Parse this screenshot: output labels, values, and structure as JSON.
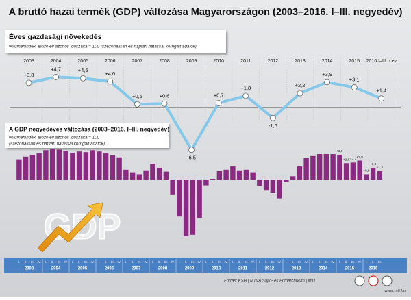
{
  "title": "A bruttó hazai termék (GDP) változása Magyarországon (2003–2016. I–III. negyedév)",
  "source": "Forrás: KSH | MTVA Sajtó- és Fotóarchívum | MTI",
  "website": "www.mti.hu",
  "logo_text": "GDP",
  "chart_data": [
    {
      "type": "line",
      "title": "Éves gazdasági növekedés",
      "subtitle": [
        "volumenindex, előző év azonos időszaka = 100 (szezonálisan és naptári hatással korrigált adatok)"
      ],
      "categories": [
        "2003",
        "2004",
        "2005",
        "2006",
        "2007",
        "2008",
        "2009",
        "2010",
        "2011",
        "2012",
        "2013",
        "2014",
        "2015",
        "2016.I–III.n.év"
      ],
      "values": [
        3.8,
        4.7,
        4.5,
        4.0,
        0.5,
        0.6,
        -6.5,
        0.7,
        1.8,
        -1.6,
        2.2,
        3.9,
        3.1,
        1.4
      ],
      "value_labels": [
        "+3,8",
        "+4,7",
        "+4,5",
        "+4,0",
        "+0,5",
        "+0,6",
        "-6,5",
        "+0,7",
        "+1,8",
        "-1,6",
        "+2,2",
        "+3,9",
        "+3,1",
        "+1,4"
      ],
      "color": "#86c8ea",
      "ylim": [
        -7,
        5
      ]
    },
    {
      "type": "bar",
      "title": "A GDP negyedéves változása (2003–2016. I–III. negyedév)",
      "subtitle": [
        "volumenindex, előző év azonos időszaka = 100",
        "(szezonálisan és naptári hatással korrigált adatok)"
      ],
      "categories": [
        "I.",
        "II.",
        "III.",
        "IV.",
        "I.",
        "II.",
        "III.",
        "IV.",
        "I.",
        "II.",
        "III.",
        "IV.",
        "I.",
        "II.",
        "III.",
        "IV.",
        "I.",
        "II.",
        "III.",
        "IV.",
        "I.",
        "II.",
        "III.",
        "IV.",
        "I.",
        "II.",
        "III.",
        "IV.",
        "I.",
        "II.",
        "III.",
        "IV.",
        "I.",
        "II.",
        "III.",
        "IV.",
        "I.",
        "II.",
        "III.",
        "IV.",
        "I.",
        "II.",
        "III.",
        "IV.",
        "I.",
        "II.",
        "III.",
        "IV.",
        "I.",
        "II.",
        "III.",
        "IV.",
        "I.",
        "II.",
        "III."
      ],
      "years": [
        "2003",
        "2004",
        "2005",
        "2006",
        "2007",
        "2008",
        "2009",
        "2010",
        "2011",
        "2012",
        "2013",
        "2014",
        "2015",
        "2016"
      ],
      "values": [
        3.2,
        3.6,
        3.9,
        4.1,
        4.6,
        4.8,
        4.7,
        4.5,
        4.2,
        4.4,
        4.3,
        4.6,
        4.4,
        4.1,
        3.8,
        3.5,
        1.6,
        1.2,
        0.9,
        1.5,
        2.5,
        1.9,
        1.3,
        -2.2,
        -5.6,
        -8.6,
        -8.4,
        -5.8,
        -0.8,
        0.2,
        1.4,
        1.6,
        2.1,
        1.5,
        1.6,
        1.2,
        -0.9,
        -1.6,
        -2.0,
        -2.8,
        -0.3,
        0.6,
        2.1,
        3.4,
        3.7,
        4.0,
        4.0,
        4.0,
        3.9,
        2.6,
        2.7,
        3.0,
        0.9,
        1.9,
        1.4
      ],
      "value_labels": [
        null,
        null,
        null,
        null,
        null,
        null,
        null,
        null,
        null,
        null,
        null,
        null,
        null,
        null,
        null,
        null,
        null,
        null,
        null,
        null,
        null,
        null,
        null,
        null,
        null,
        null,
        null,
        null,
        null,
        null,
        null,
        null,
        null,
        null,
        null,
        null,
        null,
        null,
        null,
        null,
        null,
        null,
        null,
        null,
        null,
        null,
        null,
        null,
        "+3,9",
        "+2,6",
        "+2,7",
        "+3,0",
        "+0,9",
        "+1,9",
        "+1,4"
      ],
      "color": "#8a2b82",
      "ylim": [
        -9,
        5
      ]
    }
  ]
}
